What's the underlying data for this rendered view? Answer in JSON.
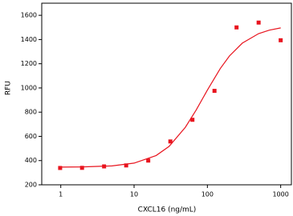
{
  "chart_data": {
    "type": "scatter",
    "x_label": "CXCL16 (ng/mL)",
    "y_label": "RFU",
    "x_scale": "log",
    "xlim": [
      0.55,
      1400
    ],
    "ylim": [
      200,
      1700
    ],
    "xticks": [
      1,
      10,
      100,
      1000
    ],
    "yticks": [
      200,
      400,
      600,
      800,
      1000,
      1200,
      1400,
      1600
    ],
    "series": [
      {
        "color": "#e8141e",
        "x": [
          0.98,
          1.95,
          3.9,
          7.8,
          15.6,
          31.25,
          62.5,
          125,
          250,
          500,
          1000
        ],
        "values": [
          339,
          340,
          352,
          360,
          400,
          558,
          737,
          976,
          1500,
          1540,
          1394
        ]
      }
    ],
    "fit_line": {
      "color": "#e8141e",
      "x": [
        0.98,
        2,
        5,
        10,
        20,
        30,
        50,
        70,
        100,
        150,
        200,
        300,
        500,
        700,
        1000
      ],
      "values": [
        346,
        348,
        356,
        379,
        442,
        517,
        675,
        816,
        982,
        1160,
        1264,
        1370,
        1449,
        1477,
        1496
      ]
    }
  }
}
